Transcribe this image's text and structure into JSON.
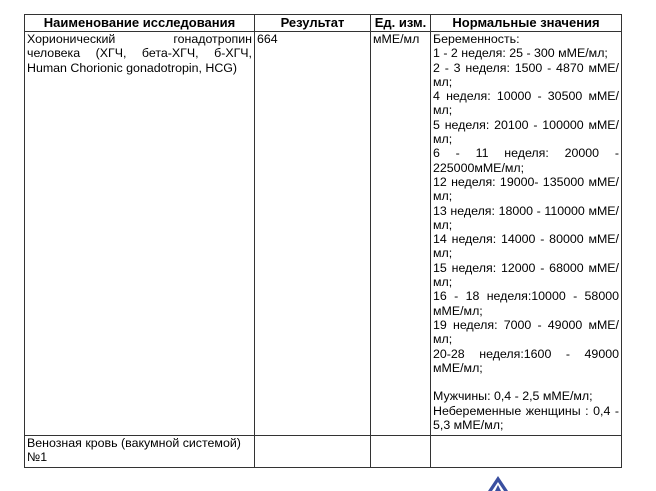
{
  "headers": {
    "name": "Наименование исследования",
    "result": "Результат",
    "unit": "Ед. изм.",
    "norm": "Нормальные значения"
  },
  "row": {
    "name": "Хорионический гонадотропин человека (ХГЧ, бета-ХГЧ, б-ХГЧ, Human Chorionic gonadotropin, HCG)",
    "result": "664",
    "unit": "мМЕ/мл",
    "norm_title": "Беременность:",
    "pregnancy": [
      "1 - 2 неделя: 25 - 300 мМЕ/мл;",
      "2 - 3 неделя: 1500 - 4870 мМЕ/мл;",
      "4 неделя: 10000 - 30500 мМЕ/мл;",
      "5 неделя: 20100 - 100000 мМЕ/мл;",
      "6 - 11 неделя: 20000 - 225000мМЕ/мл;",
      "12 неделя: 19000- 135000 мМЕ/мл;",
      "13 неделя: 18000 - 110000 мМЕ/мл;",
      "14 неделя: 14000 - 80000 мМЕ/мл;",
      "15 неделя: 12000 - 68000 мМЕ/мл;",
      "16 - 18 неделя:10000 - 58000 мМЕ/мл;",
      "19 неделя: 7000 - 49000 мМЕ/мл;",
      "20-28 неделя:1600 - 49000 мМЕ/мл;"
    ],
    "men": "Мужчины: 0,4 - 2,5 мМЕ/мл;",
    "nonpregnant": "Небеременные женщины : 0,4 - 5,3 мМЕ/мл;"
  },
  "sample": "Венозная кровь (вакумной системой) №1",
  "logo_color": "#3a4fa0"
}
